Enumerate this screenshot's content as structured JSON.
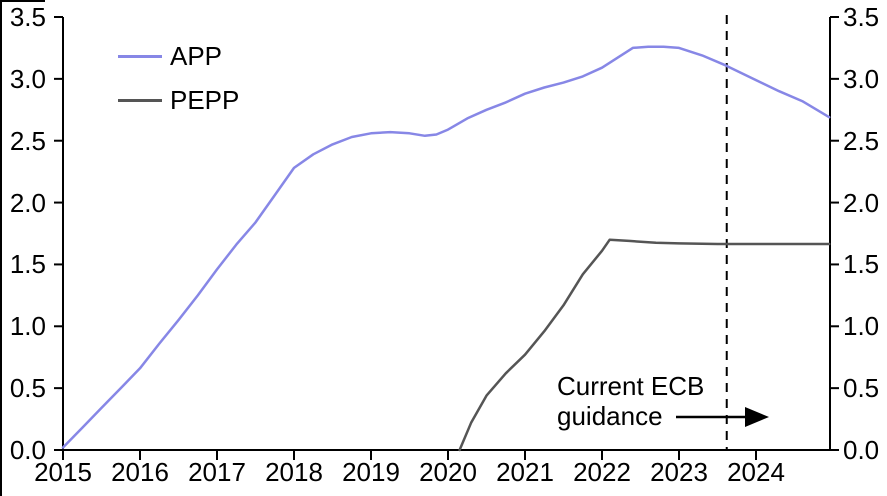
{
  "legend": {
    "items": [
      {
        "label": "APP",
        "color": "#8787e6"
      },
      {
        "label": "PEPP",
        "color": "#555555"
      }
    ]
  },
  "annotation": {
    "line1": "Current ECB",
    "line2": "guidance"
  },
  "chart_data": {
    "type": "line",
    "title": "",
    "xlabel": "",
    "ylabel": "",
    "grid": false,
    "legend_position": "top-left",
    "xlim": [
      2015,
      2024.96
    ],
    "ylim": [
      0,
      3.5
    ],
    "x_tick_years": [
      2015,
      2016,
      2017,
      2018,
      2019,
      2020,
      2021,
      2022,
      2023,
      2024
    ],
    "x_tick_labels": [
      "2015",
      "2016",
      "2017",
      "2018",
      "2019",
      "2020",
      "2021",
      "2022",
      "2023",
      "2024"
    ],
    "y_tick_values": [
      0,
      0.5,
      1.0,
      1.5,
      2.0,
      2.5,
      3.0,
      3.5
    ],
    "y_tick_labels": [
      "0.0",
      "0.5",
      "1.0",
      "1.5",
      "2.0",
      "2.5",
      "3.0",
      "3.5"
    ],
    "dashed_vline_x": 2023.62,
    "axis_color": "#000000",
    "series": [
      {
        "name": "APP",
        "color": "#8787e6",
        "points": [
          [
            2015.0,
            0.02
          ],
          [
            2015.25,
            0.18
          ],
          [
            2015.5,
            0.34
          ],
          [
            2015.75,
            0.5
          ],
          [
            2016.0,
            0.66
          ],
          [
            2016.25,
            0.86
          ],
          [
            2016.5,
            1.05
          ],
          [
            2016.75,
            1.25
          ],
          [
            2017.0,
            1.46
          ],
          [
            2017.25,
            1.66
          ],
          [
            2017.5,
            1.84
          ],
          [
            2017.75,
            2.06
          ],
          [
            2018.0,
            2.28
          ],
          [
            2018.25,
            2.39
          ],
          [
            2018.5,
            2.47
          ],
          [
            2018.75,
            2.53
          ],
          [
            2019.0,
            2.56
          ],
          [
            2019.25,
            2.57
          ],
          [
            2019.5,
            2.56
          ],
          [
            2019.7,
            2.54
          ],
          [
            2019.85,
            2.55
          ],
          [
            2020.0,
            2.59
          ],
          [
            2020.25,
            2.68
          ],
          [
            2020.5,
            2.75
          ],
          [
            2020.75,
            2.81
          ],
          [
            2021.0,
            2.88
          ],
          [
            2021.25,
            2.93
          ],
          [
            2021.5,
            2.97
          ],
          [
            2021.75,
            3.02
          ],
          [
            2022.0,
            3.09
          ],
          [
            2022.2,
            3.17
          ],
          [
            2022.4,
            3.25
          ],
          [
            2022.6,
            3.26
          ],
          [
            2022.8,
            3.26
          ],
          [
            2023.0,
            3.25
          ],
          [
            2023.3,
            3.19
          ],
          [
            2023.6,
            3.11
          ],
          [
            2024.0,
            2.99
          ],
          [
            2024.3,
            2.9
          ],
          [
            2024.6,
            2.82
          ],
          [
            2024.95,
            2.69
          ]
        ]
      },
      {
        "name": "PEPP",
        "color": "#555555",
        "points": [
          [
            2020.15,
            0.0
          ],
          [
            2020.3,
            0.22
          ],
          [
            2020.5,
            0.44
          ],
          [
            2020.75,
            0.62
          ],
          [
            2021.0,
            0.77
          ],
          [
            2021.25,
            0.96
          ],
          [
            2021.5,
            1.17
          ],
          [
            2021.75,
            1.42
          ],
          [
            2022.0,
            1.61
          ],
          [
            2022.1,
            1.7
          ],
          [
            2022.35,
            1.69
          ],
          [
            2022.7,
            1.675
          ],
          [
            2023.0,
            1.67
          ],
          [
            2023.5,
            1.665
          ],
          [
            2024.0,
            1.665
          ],
          [
            2024.95,
            1.665
          ]
        ]
      }
    ]
  }
}
